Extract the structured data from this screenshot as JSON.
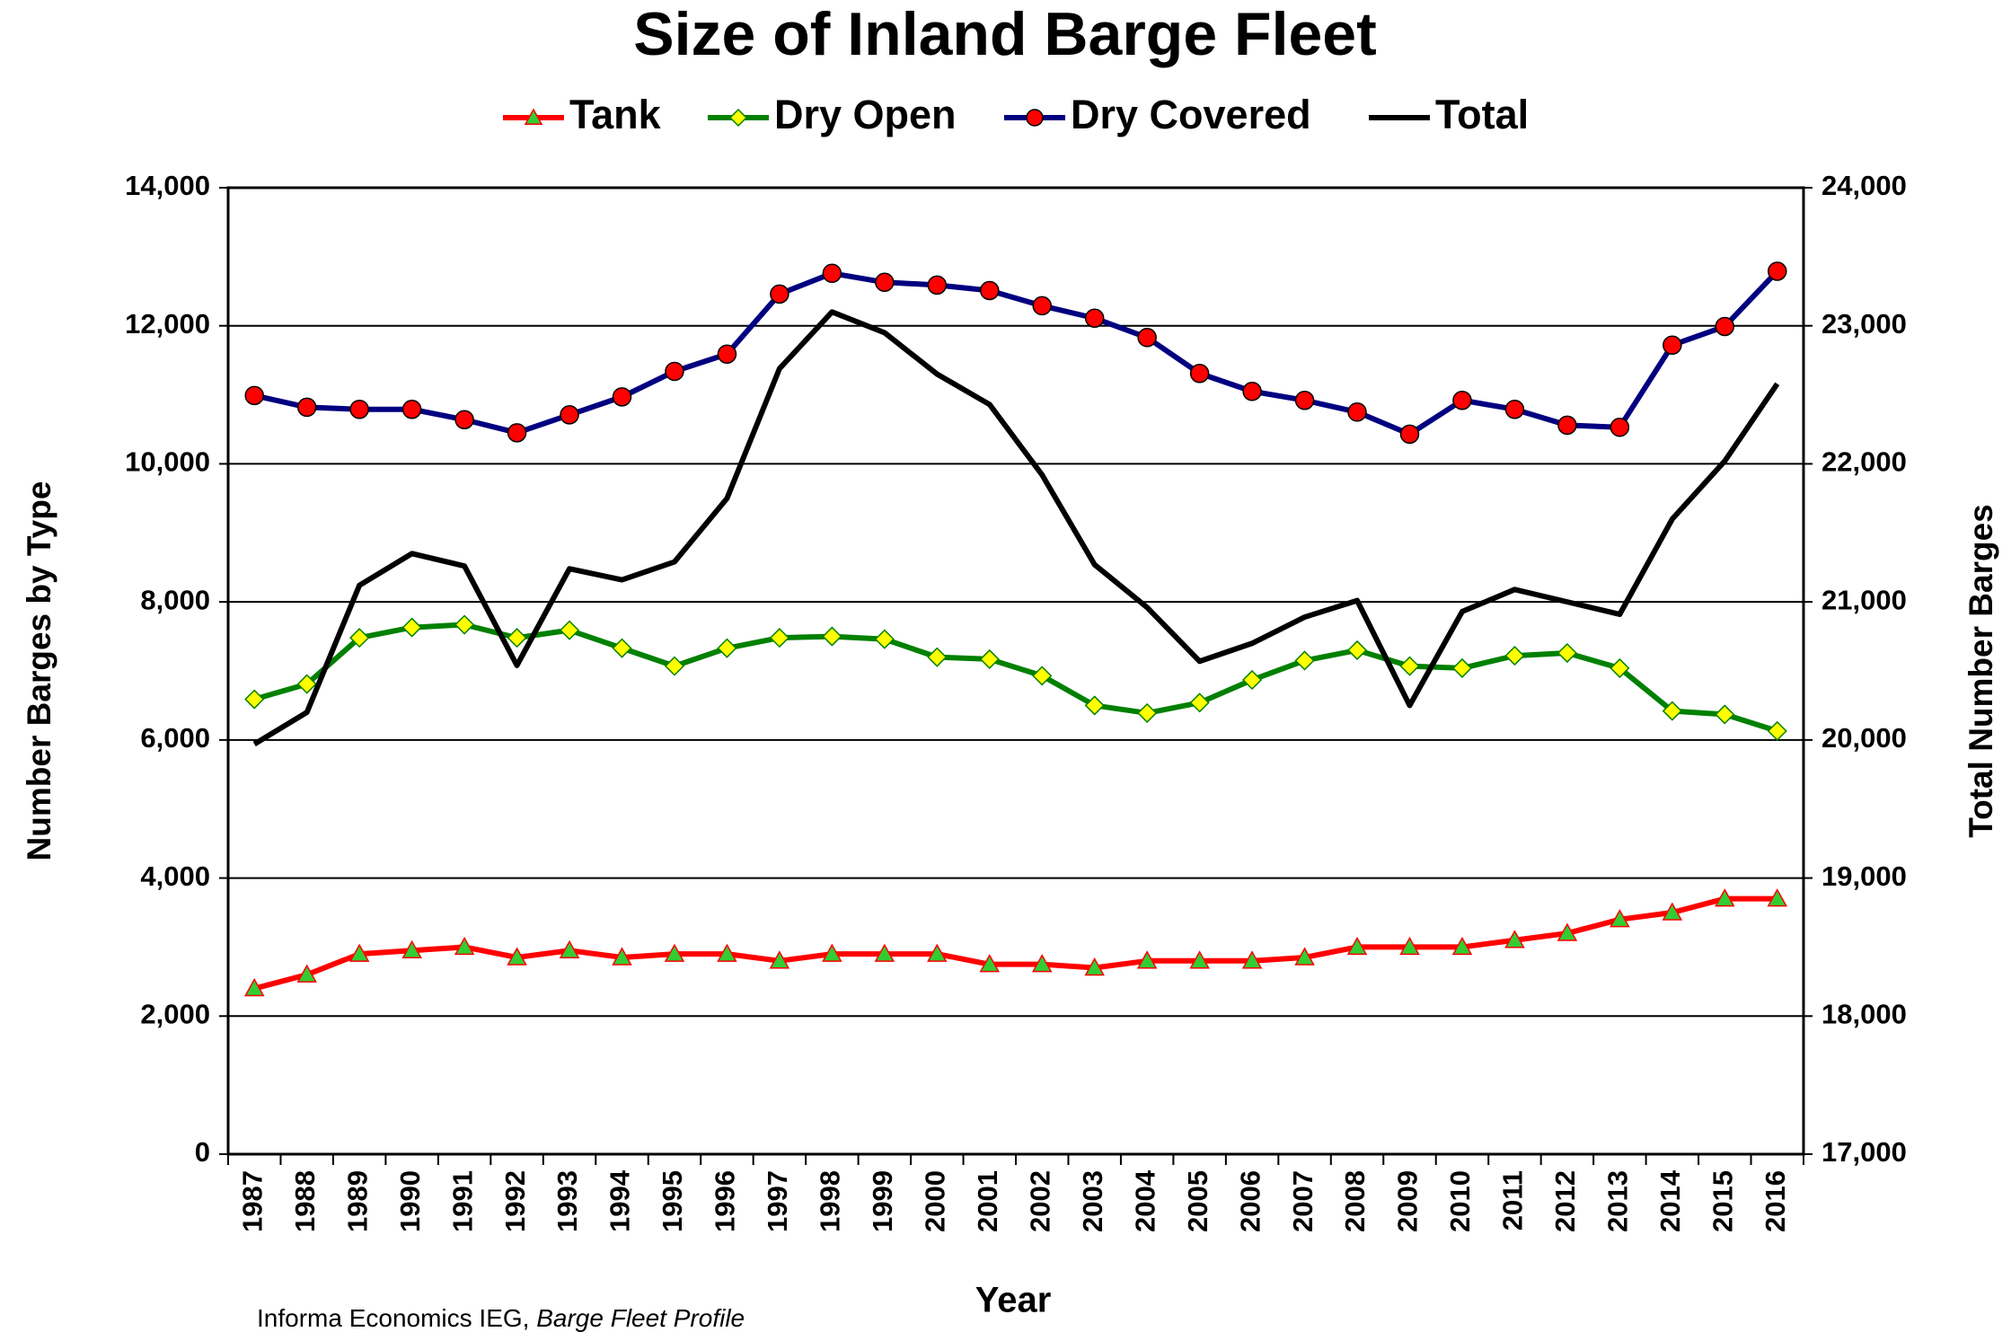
{
  "chart_data": {
    "type": "line",
    "title": "Size of Inland Barge Fleet",
    "xlabel": "Year",
    "ylabel": "Number Barges by Type",
    "y2label": "Total Number Barges",
    "source": {
      "text": "Informa  Economics IEG,",
      "publication": "Barge Fleet Profile"
    },
    "categories": [
      "1987",
      "1988",
      "1989",
      "1990",
      "1991",
      "1992",
      "1993",
      "1994",
      "1995",
      "1996",
      "1997",
      "1998",
      "1999",
      "2000",
      "2001",
      "2002",
      "2003",
      "2004",
      "2005",
      "2006",
      "2007",
      "2008",
      "2009",
      "2010",
      "2011",
      "2012",
      "2013",
      "2014",
      "2015",
      "2016"
    ],
    "series": [
      {
        "name": "Tank",
        "color": "#ff0000",
        "marker": "triangle",
        "marker_color": "#33cc33",
        "values": [
          2400,
          2600,
          2900,
          2950,
          3000,
          2850,
          2950,
          2850,
          2900,
          2900,
          2800,
          2900,
          2900,
          2900,
          2750,
          2750,
          2700,
          2800,
          2800,
          2800,
          2850,
          3000,
          3000,
          3000,
          3100,
          3200,
          3400,
          3500,
          3700,
          3700
        ]
      },
      {
        "name": "Dry Open",
        "color": "#008000",
        "marker": "diamond",
        "marker_color": "#ffff00",
        "values": [
          6590,
          6810,
          7480,
          7630,
          7670,
          7480,
          7590,
          7330,
          7070,
          7330,
          7480,
          7500,
          7460,
          7200,
          7170,
          6930,
          6500,
          6390,
          6540,
          6870,
          7150,
          7300,
          7070,
          7040,
          7220,
          7260,
          7040,
          6420,
          6370,
          6130
        ]
      },
      {
        "name": "Dry Covered",
        "color": "#000080",
        "marker": "circle",
        "marker_color": "#ff0000",
        "values": [
          10990,
          10820,
          10790,
          10790,
          10640,
          10450,
          10710,
          10970,
          11340,
          11590,
          12460,
          12760,
          12630,
          12590,
          12510,
          12290,
          12110,
          11830,
          11310,
          11050,
          10920,
          10750,
          10430,
          10920,
          10790,
          10560,
          10530,
          11720,
          11990,
          12790
        ]
      },
      {
        "name": "Total",
        "color": "#000000",
        "axis": "y2",
        "values": [
          19970,
          20200,
          21120,
          21350,
          21260,
          20540,
          21240,
          21160,
          21290,
          21750,
          22690,
          23100,
          22950,
          22650,
          22430,
          21920,
          21270,
          20960,
          20570,
          20700,
          20890,
          21010,
          20250,
          20930,
          21090,
          21000,
          20910,
          21600,
          22020,
          22580
        ]
      }
    ],
    "ylim": [
      0,
      14000
    ],
    "yticks": [
      0,
      {
        "value": 2000,
        "label": "2,000"
      },
      {
        "value": 4000,
        "label": "4,000"
      },
      {
        "value": 6000,
        "label": "6,000"
      },
      {
        "value": 8000,
        "label": "8,000"
      },
      {
        "value": 10000,
        "label": "10,000"
      },
      {
        "value": 12000,
        "label": "12,000"
      },
      {
        "value": 14000,
        "label": "14,000"
      }
    ],
    "y2lim": [
      17000,
      24000
    ],
    "y2ticks": [
      {
        "value": 17000,
        "label": "17,000"
      },
      {
        "value": 18000,
        "label": "18,000"
      },
      {
        "value": 19000,
        "label": "19,000"
      },
      {
        "value": 20000,
        "label": "20,000"
      },
      {
        "value": 21000,
        "label": "21,000"
      },
      {
        "value": 22000,
        "label": "22,000"
      },
      {
        "value": 23000,
        "label": "23,000"
      },
      {
        "value": 24000,
        "label": "24,000"
      }
    ],
    "grid": true,
    "legend": "top"
  }
}
